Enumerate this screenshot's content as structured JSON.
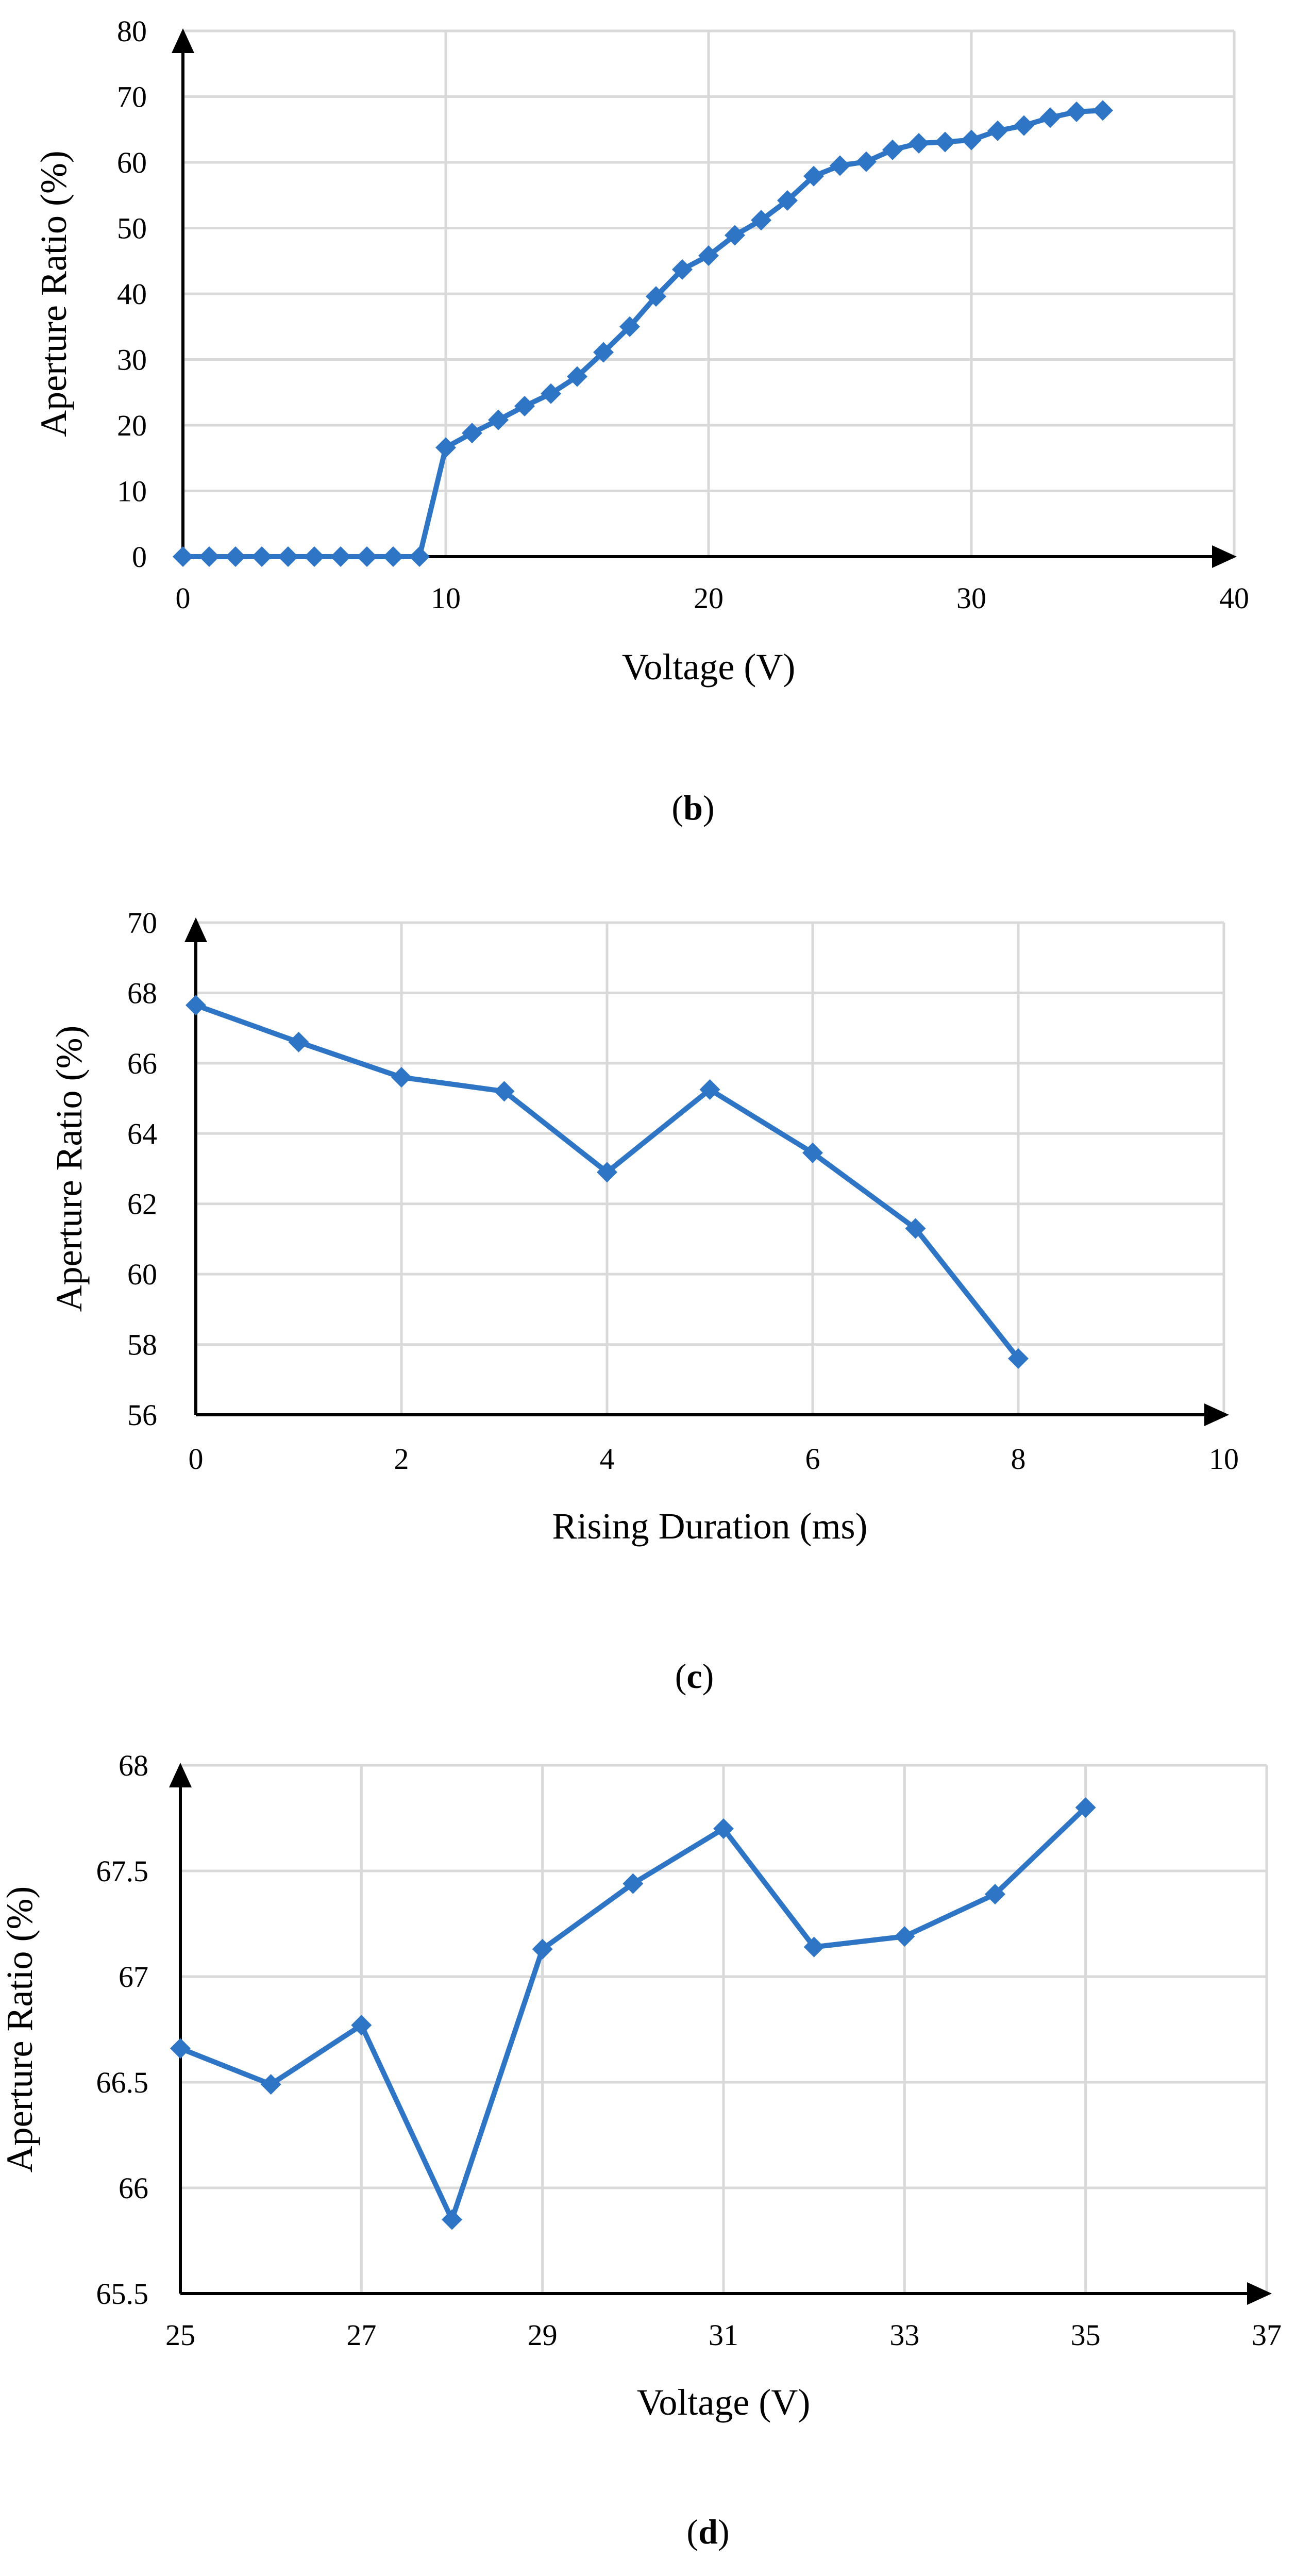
{
  "colors": {
    "series": "#2E75C6",
    "grid": "#d9d9d9",
    "axis": "#000000"
  },
  "chart_data": [
    {
      "type": "line",
      "panel_label": "b",
      "xlabel": "Voltage (V)",
      "ylabel": "Aperture Ratio (%)",
      "xlim": [
        0,
        40
      ],
      "ylim": [
        0,
        80
      ],
      "x_ticks": [
        0,
        10,
        20,
        30,
        40
      ],
      "y_ticks": [
        0,
        10,
        20,
        30,
        40,
        50,
        60,
        70,
        80
      ],
      "x_tick_labels": [
        "0",
        "10",
        "20",
        "30",
        "40"
      ],
      "y_tick_labels": [
        "0",
        "10",
        "20",
        "30",
        "40",
        "50",
        "60",
        "70",
        "80"
      ],
      "grid": true,
      "marker": "diamond",
      "series": [
        {
          "name": "Aperture Ratio",
          "x": [
            0,
            1,
            2,
            3,
            4,
            5,
            6,
            7,
            8,
            9,
            10,
            11,
            12,
            13,
            14,
            15,
            16,
            17,
            18,
            19,
            20,
            21,
            22,
            23,
            24,
            25,
            26,
            27,
            28,
            29,
            30,
            31,
            32,
            33,
            34,
            35
          ],
          "values": [
            0,
            0,
            0,
            0,
            0,
            0,
            0,
            0,
            0,
            0,
            16.6,
            18.8,
            20.8,
            22.9,
            24.8,
            27.4,
            31.1,
            35.0,
            39.6,
            43.7,
            45.8,
            48.9,
            51.2,
            54.2,
            57.9,
            59.5,
            60.1,
            61.9,
            62.9,
            63.1,
            63.4,
            64.8,
            65.6,
            66.8,
            67.7,
            67.9
          ]
        }
      ]
    },
    {
      "type": "line",
      "panel_label": "c",
      "xlabel": "Rising Duration (ms)",
      "ylabel": "Aperture Ratio (%)",
      "xlim": [
        0,
        10
      ],
      "ylim": [
        56,
        70
      ],
      "x_ticks": [
        0,
        2,
        4,
        6,
        8,
        10
      ],
      "y_ticks": [
        56,
        58,
        60,
        62,
        64,
        66,
        68,
        70
      ],
      "x_tick_labels": [
        "0",
        "2",
        "4",
        "6",
        "8",
        "10"
      ],
      "y_tick_labels": [
        "56",
        "58",
        "60",
        "62",
        "64",
        "66",
        "68",
        "70"
      ],
      "grid": true,
      "marker": "diamond",
      "series": [
        {
          "name": "Aperture Ratio",
          "x": [
            0,
            1,
            2,
            3,
            4,
            5,
            6,
            7,
            8
          ],
          "values": [
            67.65,
            66.6,
            65.6,
            65.2,
            62.9,
            65.25,
            63.45,
            61.3,
            57.6
          ]
        }
      ]
    },
    {
      "type": "line",
      "panel_label": "d",
      "xlabel": "Voltage (V)",
      "ylabel": "Aperture Ratio (%)",
      "xlim": [
        25,
        37
      ],
      "ylim": [
        65.5,
        68
      ],
      "x_ticks": [
        25,
        27,
        29,
        31,
        33,
        35,
        37
      ],
      "y_ticks": [
        65.5,
        66,
        66.5,
        67,
        67.5,
        68
      ],
      "x_tick_labels": [
        "25",
        "27",
        "29",
        "31",
        "33",
        "35",
        "37"
      ],
      "y_tick_labels": [
        "65.5",
        "66",
        "66.5",
        "67",
        "67.5",
        "68"
      ],
      "grid": true,
      "marker": "diamond",
      "series": [
        {
          "name": "Aperture Ratio",
          "x": [
            25,
            26,
            27,
            28,
            29,
            30,
            31,
            32,
            33,
            34,
            35
          ],
          "values": [
            66.66,
            66.49,
            66.77,
            65.85,
            67.13,
            67.44,
            67.7,
            67.14,
            67.19,
            67.39,
            67.8
          ]
        }
      ]
    }
  ]
}
